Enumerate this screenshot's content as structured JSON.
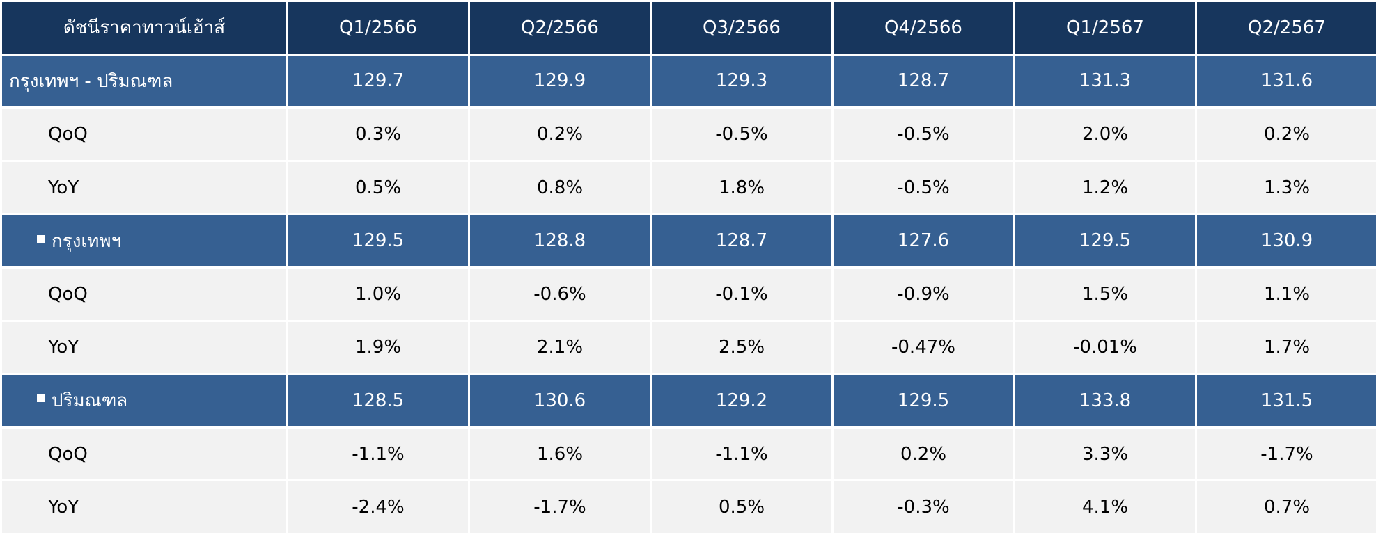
{
  "chart_data": {
    "type": "table",
    "colors": {
      "header_bg": "#17365d",
      "group_bg": "#366092",
      "row_bg": "#f2f2f2",
      "negative_text": "#ff0000",
      "header_text": "#ffffff",
      "body_text": "#000000"
    },
    "header": {
      "index_title": "ดัชนีราคาทาวน์เฮ้าส์",
      "periods": [
        "Q1/2566",
        "Q2/2566",
        "Q3/2566",
        "Q4/2566",
        "Q1/2567",
        "Q2/2567"
      ]
    },
    "groups": [
      {
        "label": "กรุงเทพฯ - ปริมณฑล",
        "bullet": false,
        "values": [
          "129.7",
          "129.9",
          "129.3",
          "128.7",
          "131.3",
          "131.6"
        ],
        "rows": [
          {
            "label": "QoQ",
            "values": [
              "0.3%",
              "0.2%",
              "-0.5%",
              "-0.5%",
              "2.0%",
              "0.2%"
            ]
          },
          {
            "label": "YoY",
            "values": [
              "0.5%",
              "0.8%",
              "1.8%",
              "-0.5%",
              "1.2%",
              "1.3%"
            ]
          }
        ]
      },
      {
        "label": "กรุงเทพฯ",
        "bullet": true,
        "values": [
          "129.5",
          "128.8",
          "128.7",
          "127.6",
          "129.5",
          "130.9"
        ],
        "rows": [
          {
            "label": "QoQ",
            "values": [
              "1.0%",
              "-0.6%",
              "-0.1%",
              "-0.9%",
              "1.5%",
              "1.1%"
            ]
          },
          {
            "label": "YoY",
            "values": [
              "1.9%",
              "2.1%",
              "2.5%",
              "-0.47%",
              "-0.01%",
              "1.7%"
            ]
          }
        ]
      },
      {
        "label": "ปริมณฑล",
        "bullet": true,
        "values": [
          "128.5",
          "130.6",
          "129.2",
          "129.5",
          "133.8",
          "131.5"
        ],
        "rows": [
          {
            "label": "QoQ",
            "values": [
              "-1.1%",
              "1.6%",
              "-1.1%",
              "0.2%",
              "3.3%",
              "-1.7%"
            ]
          },
          {
            "label": "YoY",
            "values": [
              "-2.4%",
              "-1.7%",
              "0.5%",
              "-0.3%",
              "4.1%",
              "0.7%"
            ]
          }
        ]
      }
    ]
  }
}
